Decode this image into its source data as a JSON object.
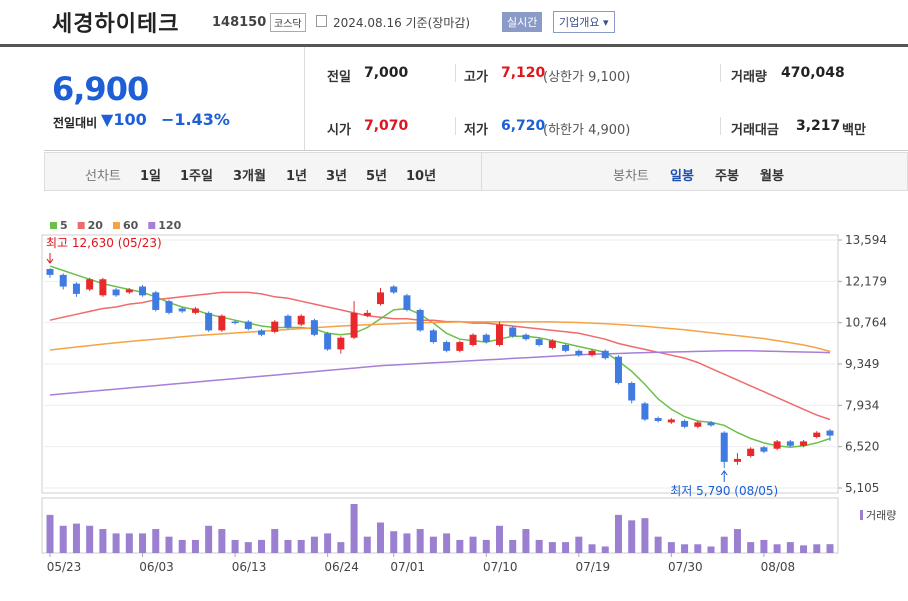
{
  "header": {
    "title": "세경하이테크",
    "code": "148150",
    "market": "코스닥",
    "date": "2024.08.16",
    "basis": "기준(장마감)",
    "realtime": "실시간",
    "company": "기업개요"
  },
  "summary": {
    "price": "6,900",
    "change_label": "전일대비",
    "change": "100",
    "rate": "−1.43%",
    "items": [
      {
        "label": "전일",
        "value": "7,000"
      },
      {
        "label": "고가",
        "value": "7,120",
        "note": "(상한가 9,100)"
      },
      {
        "label": "거래량",
        "value": "470,048"
      },
      {
        "label": "시가",
        "value": "7,070"
      },
      {
        "label": "저가",
        "value": "6,720",
        "note": "(하한가 4,900)"
      },
      {
        "label": "거래대금",
        "value": "3,217",
        "unit": "백만"
      }
    ]
  },
  "tabs": {
    "line_label": "선차트",
    "line": [
      "1일",
      "1주일",
      "3개월",
      "1년",
      "3년",
      "5년",
      "10년"
    ],
    "candle_label": "봉차트",
    "candle": [
      "일봉",
      "주봉",
      "월봉"
    ]
  },
  "chart_data": {
    "type": "candlestick",
    "up_color": "#e8292b",
    "down_color": "#3f7be0",
    "categories": [
      "05/23",
      null,
      null,
      null,
      null,
      null,
      null,
      "06/03",
      null,
      null,
      null,
      null,
      null,
      null,
      "06/13",
      null,
      null,
      null,
      null,
      null,
      null,
      "06/24",
      null,
      null,
      null,
      null,
      "07/01",
      null,
      null,
      null,
      null,
      null,
      null,
      "07/10",
      null,
      null,
      null,
      null,
      null,
      null,
      "07/19",
      null,
      null,
      null,
      null,
      null,
      null,
      "07/30",
      null,
      null,
      null,
      null,
      null,
      null,
      "08/08",
      null,
      null,
      null,
      null,
      null
    ],
    "open": [
      12600,
      12400,
      12100,
      11900,
      11700,
      11900,
      11800,
      12000,
      11800,
      11500,
      11250,
      11100,
      11100,
      10500,
      10800,
      10800,
      10500,
      10450,
      11000,
      10700,
      10850,
      10400,
      9850,
      10250,
      11000,
      11400,
      12000,
      11700,
      11200,
      10500,
      10100,
      9800,
      10000,
      10350,
      10000,
      10600,
      10350,
      10200,
      9900,
      10000,
      9800,
      9650,
      9800,
      9600,
      8700,
      8000,
      7500,
      7350,
      7400,
      7200,
      7350,
      7000,
      6000,
      6200,
      6500,
      6450,
      6700,
      6550,
      6850,
      7070
    ],
    "high": [
      12630,
      12450,
      12150,
      12300,
      12300,
      11950,
      11950,
      12050,
      11850,
      11550,
      11300,
      11300,
      11150,
      11050,
      10850,
      10850,
      10550,
      10850,
      11050,
      11050,
      10900,
      10450,
      10300,
      11500,
      11200,
      11950,
      12050,
      11750,
      11250,
      10550,
      10150,
      10150,
      10400,
      10400,
      10800,
      10650,
      10400,
      10250,
      10200,
      10050,
      9850,
      9850,
      9850,
      9650,
      8750,
      8050,
      7550,
      7500,
      7450,
      7400,
      7400,
      7050,
      6300,
      6500,
      6550,
      6750,
      6750,
      6750,
      7050,
      7120
    ],
    "low": [
      12300,
      11900,
      11650,
      11850,
      11650,
      11650,
      11750,
      11650,
      11150,
      11050,
      11100,
      11050,
      10450,
      10450,
      10700,
      10500,
      10300,
      10400,
      10550,
      10650,
      10300,
      9800,
      9700,
      10200,
      10950,
      11350,
      11750,
      11150,
      10450,
      10050,
      9750,
      9750,
      9950,
      10050,
      9950,
      10250,
      10150,
      9950,
      9850,
      9750,
      9600,
      9600,
      9500,
      8650,
      8000,
      7400,
      7350,
      7300,
      7150,
      7150,
      7200,
      5790,
      5900,
      6150,
      6300,
      6400,
      6500,
      6500,
      6800,
      6720
    ],
    "close": [
      12400,
      12000,
      11750,
      12250,
      12250,
      11700,
      11900,
      11700,
      11200,
      11100,
      11150,
      11250,
      10500,
      11000,
      10750,
      10550,
      10350,
      10800,
      10600,
      11000,
      10350,
      9850,
      10250,
      11100,
      11100,
      11800,
      11800,
      11200,
      10500,
      10100,
      9800,
      10100,
      10350,
      10100,
      10700,
      10300,
      10200,
      10000,
      10150,
      9800,
      9650,
      9800,
      9550,
      8700,
      8100,
      7450,
      7400,
      7450,
      7200,
      7350,
      7250,
      6000,
      6100,
      6450,
      6350,
      6700,
      6550,
      6700,
      7000,
      6900
    ],
    "series": [
      {
        "name": "5",
        "color": "#6cc04a",
        "values": [
          12700,
          12550,
          12400,
          12250,
          12100,
          12000,
          11900,
          11800,
          11650,
          11450,
          11300,
          11200,
          11050,
          10950,
          10850,
          10750,
          10650,
          10600,
          10600,
          10600,
          10550,
          10400,
          10350,
          10400,
          10600,
          10900,
          11200,
          11250,
          11050,
          10750,
          10400,
          10200,
          10150,
          10100,
          10200,
          10300,
          10300,
          10250,
          10150,
          10050,
          9950,
          9850,
          9750,
          9450,
          9100,
          8650,
          8150,
          7800,
          7550,
          7400,
          7350,
          7250,
          7000,
          6800,
          6650,
          6550,
          6500,
          6550,
          6650,
          6800
        ]
      },
      {
        "name": "20",
        "color": "#ef6b6b",
        "values": [
          10850,
          10950,
          11050,
          11150,
          11250,
          11300,
          11400,
          11450,
          11550,
          11600,
          11650,
          11700,
          11750,
          11800,
          11800,
          11800,
          11750,
          11650,
          11600,
          11500,
          11400,
          11300,
          11200,
          11100,
          11000,
          10950,
          10900,
          10900,
          10850,
          10850,
          10800,
          10800,
          10750,
          10750,
          10700,
          10650,
          10600,
          10550,
          10500,
          10450,
          10400,
          10300,
          10200,
          10050,
          9950,
          9850,
          9750,
          9650,
          9550,
          9400,
          9200,
          9000,
          8800,
          8600,
          8400,
          8200,
          8000,
          7800,
          7600,
          7450
        ]
      },
      {
        "name": "60",
        "color": "#f5a344",
        "values": [
          9830,
          9880,
          9930,
          9980,
          10030,
          10080,
          10120,
          10160,
          10200,
          10240,
          10280,
          10320,
          10350,
          10380,
          10410,
          10440,
          10470,
          10500,
          10530,
          10560,
          10590,
          10620,
          10650,
          10670,
          10690,
          10710,
          10730,
          10750,
          10760,
          10770,
          10780,
          10790,
          10790,
          10790,
          10790,
          10790,
          10790,
          10790,
          10790,
          10780,
          10770,
          10750,
          10730,
          10700,
          10670,
          10640,
          10600,
          10560,
          10520,
          10470,
          10420,
          10370,
          10320,
          10270,
          10220,
          10150,
          10080,
          10000,
          9900,
          9780
        ]
      },
      {
        "name": "120",
        "color": "#a77ed8",
        "values": [
          8290,
          8330,
          8370,
          8410,
          8450,
          8490,
          8530,
          8570,
          8610,
          8650,
          8690,
          8730,
          8770,
          8810,
          8850,
          8890,
          8930,
          8970,
          9010,
          9050,
          9090,
          9130,
          9170,
          9210,
          9250,
          9290,
          9315,
          9340,
          9365,
          9390,
          9415,
          9440,
          9465,
          9490,
          9515,
          9540,
          9565,
          9590,
          9615,
          9640,
          9665,
          9680,
          9695,
          9710,
          9725,
          9740,
          9750,
          9760,
          9770,
          9780,
          9790,
          9800,
          9800,
          9800,
          9790,
          9780,
          9770,
          9760,
          9750,
          9740
        ]
      }
    ],
    "volume": {
      "name": "거래량",
      "color": "#9b7fd0",
      "values": [
        2030000,
        1450000,
        1566000,
        1450000,
        1276000,
        1044000,
        1044000,
        1044000,
        1276000,
        870000,
        696000,
        696000,
        1450000,
        1276000,
        696000,
        580000,
        696000,
        1276000,
        696000,
        696000,
        870000,
        1044000,
        580000,
        2610000,
        870000,
        1624000,
        1160000,
        1044000,
        1276000,
        870000,
        1044000,
        696000,
        870000,
        696000,
        1450000,
        696000,
        1276000,
        696000,
        580000,
        580000,
        870000,
        464000,
        348000,
        2030000,
        1740000,
        1856000,
        870000,
        580000,
        464000,
        464000,
        348000,
        870000,
        1276000,
        580000,
        696000,
        464000,
        580000,
        406000,
        464000,
        470048
      ]
    },
    "high_label": "최고 12,630 (05/23)",
    "low_label": "최저 5,790 (08/05)",
    "ylim": [
      5105,
      13594
    ],
    "yticks": [
      {
        "value": 13594,
        "label": "13,594"
      },
      {
        "value": 12179,
        "label": "12,179"
      },
      {
        "value": 10764,
        "label": "10,764"
      },
      {
        "value": 9349,
        "label": "9,349"
      },
      {
        "value": 7934,
        "label": "7,934"
      },
      {
        "value": 6520,
        "label": "6,520"
      },
      {
        "value": 5105,
        "label": "5,105"
      }
    ],
    "grid": true
  }
}
